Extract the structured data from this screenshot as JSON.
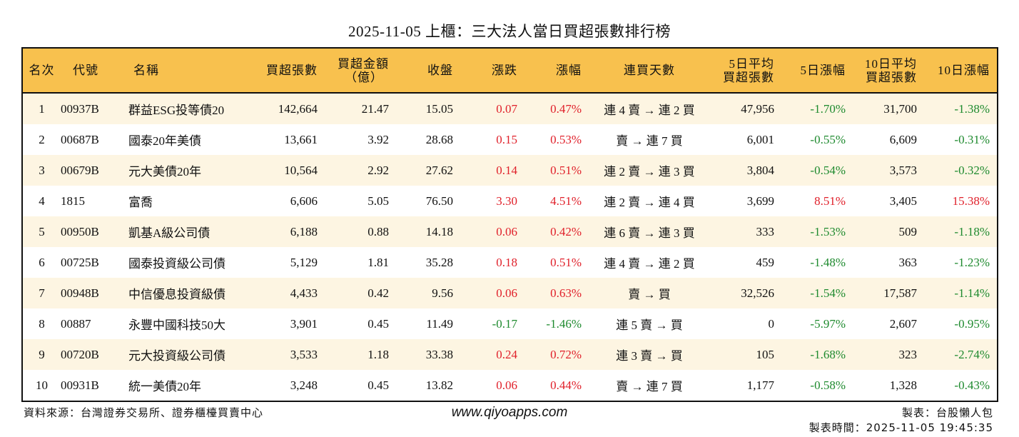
{
  "title": "2025-11-05 上櫃：三大法人當日買超張數排行榜",
  "colors": {
    "header_bg": "#F8C14E",
    "alt_row_bg": "#FDF5E2",
    "up": "#E0202A",
    "down": "#1E8A2E"
  },
  "columns": {
    "rank": "名次",
    "code": "代號",
    "name": "名稱",
    "net_buy_lots": "買超張數",
    "amount_1": "買超金額",
    "amount_2": "（億）",
    "close": "收盤",
    "change": "漲跌",
    "pct": "漲幅",
    "streak": "連買天數",
    "avg5_1": "5日平均",
    "avg5_2": "買超張數",
    "pct5": "5日漲幅",
    "avg10_1": "10日平均",
    "avg10_2": "買超張數",
    "pct10": "10日漲幅"
  },
  "rows": [
    {
      "rank": "1",
      "code": "00937B",
      "name": "群益ESG投等債20",
      "lots": "142,664",
      "amount": "21.47",
      "close": "15.05",
      "change": "0.07",
      "pct": "0.47%",
      "streak": "連 4 賣 → 連 2 買",
      "avg5": "47,956",
      "pct5": "-1.70%",
      "avg10": "31,700",
      "pct10": "-1.38%",
      "dir": "up",
      "dir5": "down",
      "dir10": "down"
    },
    {
      "rank": "2",
      "code": "00687B",
      "name": "國泰20年美債",
      "lots": "13,661",
      "amount": "3.92",
      "close": "28.68",
      "change": "0.15",
      "pct": "0.53%",
      "streak": "賣 → 連 7 買",
      "avg5": "6,001",
      "pct5": "-0.55%",
      "avg10": "6,609",
      "pct10": "-0.31%",
      "dir": "up",
      "dir5": "down",
      "dir10": "down"
    },
    {
      "rank": "3",
      "code": "00679B",
      "name": "元大美債20年",
      "lots": "10,564",
      "amount": "2.92",
      "close": "27.62",
      "change": "0.14",
      "pct": "0.51%",
      "streak": "連 2 賣 → 連 3 買",
      "avg5": "3,804",
      "pct5": "-0.54%",
      "avg10": "3,573",
      "pct10": "-0.32%",
      "dir": "up",
      "dir5": "down",
      "dir10": "down"
    },
    {
      "rank": "4",
      "code": "1815",
      "name": "富喬",
      "lots": "6,606",
      "amount": "5.05",
      "close": "76.50",
      "change": "3.30",
      "pct": "4.51%",
      "streak": "連 2 賣 → 連 4 買",
      "avg5": "3,699",
      "pct5": "8.51%",
      "avg10": "3,405",
      "pct10": "15.38%",
      "dir": "up",
      "dir5": "up",
      "dir10": "up"
    },
    {
      "rank": "5",
      "code": "00950B",
      "name": "凱基A級公司債",
      "lots": "6,188",
      "amount": "0.88",
      "close": "14.18",
      "change": "0.06",
      "pct": "0.42%",
      "streak": "連 6 賣 → 連 3 買",
      "avg5": "333",
      "pct5": "-1.53%",
      "avg10": "509",
      "pct10": "-1.18%",
      "dir": "up",
      "dir5": "down",
      "dir10": "down"
    },
    {
      "rank": "6",
      "code": "00725B",
      "name": "國泰投資級公司債",
      "lots": "5,129",
      "amount": "1.81",
      "close": "35.28",
      "change": "0.18",
      "pct": "0.51%",
      "streak": "連 4 賣 → 連 2 買",
      "avg5": "459",
      "pct5": "-1.48%",
      "avg10": "363",
      "pct10": "-1.23%",
      "dir": "up",
      "dir5": "down",
      "dir10": "down"
    },
    {
      "rank": "7",
      "code": "00948B",
      "name": "中信優息投資級債",
      "lots": "4,433",
      "amount": "0.42",
      "close": "9.56",
      "change": "0.06",
      "pct": "0.63%",
      "streak": "賣 → 買",
      "avg5": "32,526",
      "pct5": "-1.54%",
      "avg10": "17,587",
      "pct10": "-1.14%",
      "dir": "up",
      "dir5": "down",
      "dir10": "down"
    },
    {
      "rank": "8",
      "code": "00887",
      "name": "永豐中國科技50大",
      "lots": "3,901",
      "amount": "0.45",
      "close": "11.49",
      "change": "-0.17",
      "pct": "-1.46%",
      "streak": "連 5 賣 → 買",
      "avg5": "0",
      "pct5": "-5.97%",
      "avg10": "2,607",
      "pct10": "-0.95%",
      "dir": "down",
      "dir5": "down",
      "dir10": "down"
    },
    {
      "rank": "9",
      "code": "00720B",
      "name": "元大投資級公司債",
      "lots": "3,533",
      "amount": "1.18",
      "close": "33.38",
      "change": "0.24",
      "pct": "0.72%",
      "streak": "連 3 賣 → 買",
      "avg5": "105",
      "pct5": "-1.68%",
      "avg10": "323",
      "pct10": "-2.74%",
      "dir": "up",
      "dir5": "down",
      "dir10": "down"
    },
    {
      "rank": "10",
      "code": "00931B",
      "name": "統一美債20年",
      "lots": "3,248",
      "amount": "0.45",
      "close": "13.82",
      "change": "0.06",
      "pct": "0.44%",
      "streak": "賣 → 連 7 買",
      "avg5": "1,177",
      "pct5": "-0.58%",
      "avg10": "1,328",
      "pct10": "-0.43%",
      "dir": "up",
      "dir5": "down",
      "dir10": "down"
    }
  ],
  "footer": {
    "source": "資料來源：台灣證券交易所、證券櫃檯買賣中心",
    "website": "www.qiyoapps.com",
    "maker": "製表：台股懶人包",
    "made_time": "製表時間：2025-11-05 19:45:35"
  }
}
